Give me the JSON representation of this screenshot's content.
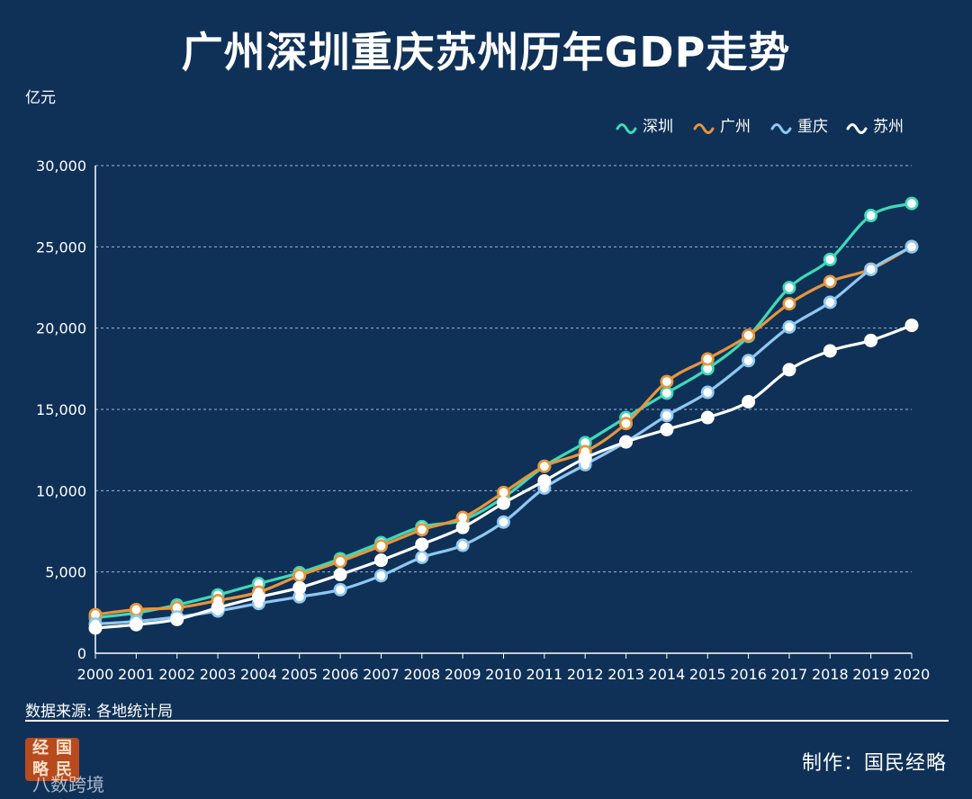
{
  "title": "广州深圳重庆苏州历年GDP走势",
  "unit_label": "亿元",
  "source_label": "数据来源: 各地统计局",
  "maker_label": "制作：国民经略",
  "logo_text": [
    "经",
    "国",
    "略",
    "民"
  ],
  "watermark": "八数跨境",
  "chart_data": {
    "type": "line",
    "title": "广州深圳重庆苏州历年GDP走势",
    "ylabel": "亿元",
    "xlabel": "",
    "ylim": [
      0,
      30000
    ],
    "yticks": [
      0,
      5000,
      10000,
      15000,
      20000,
      25000,
      30000
    ],
    "ytick_labels": [
      "0",
      "5,000",
      "10,000",
      "15,000",
      "20,000",
      "25,000",
      "30,000"
    ],
    "grid": true,
    "legend_position": "top-right",
    "categories": [
      "2000",
      "2001",
      "2002",
      "2003",
      "2004",
      "2005",
      "2006",
      "2007",
      "2008",
      "2009",
      "2010",
      "2011",
      "2012",
      "2013",
      "2014",
      "2015",
      "2016",
      "2017",
      "2018",
      "2019",
      "2020"
    ],
    "series": [
      {
        "name": "深圳",
        "color": "#3fd9b8",
        "values": [
          2187,
          2482,
          2970,
          3586,
          4282,
          4951,
          5814,
          6802,
          7787,
          8201,
          9582,
          11502,
          12950,
          14500,
          16002,
          17503,
          19493,
          22490,
          24222,
          26927,
          27670
        ]
      },
      {
        "name": "广州",
        "color": "#e8953a",
        "values": [
          2376,
          2686,
          2800,
          3240,
          3760,
          4780,
          5650,
          6600,
          7600,
          8350,
          9890,
          11500,
          12400,
          14130,
          16710,
          18100,
          19550,
          21500,
          22860,
          23630,
          25019
        ]
      },
      {
        "name": "重庆",
        "color": "#8fc8f2",
        "values": [
          1800,
          1960,
          2230,
          2600,
          3060,
          3470,
          3910,
          4770,
          5900,
          6640,
          8070,
          10160,
          11600,
          13000,
          14620,
          16050,
          18000,
          20070,
          21590,
          23610,
          25002
        ]
      },
      {
        "name": "苏州",
        "color": "#ffffff",
        "values": [
          1550,
          1760,
          2080,
          2800,
          3450,
          4030,
          4840,
          5720,
          6700,
          7740,
          9230,
          10600,
          12000,
          13000,
          13760,
          14500,
          15470,
          17440,
          18600,
          19240,
          20170
        ]
      }
    ]
  }
}
